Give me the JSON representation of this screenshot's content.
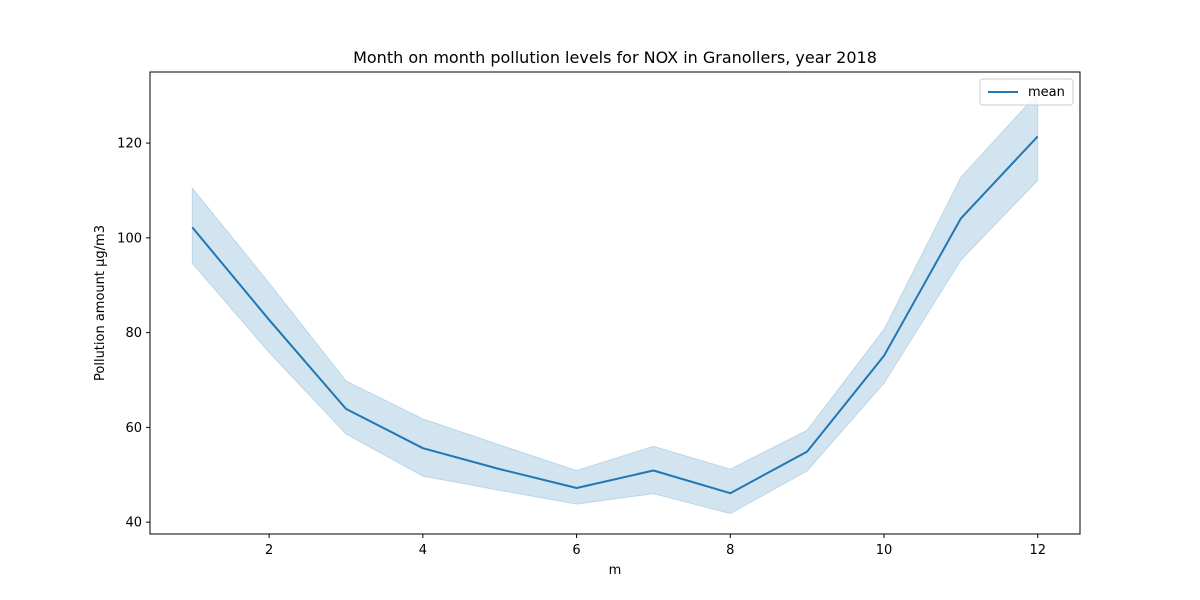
{
  "chart_data": {
    "type": "line",
    "title": "Month on month pollution levels for NOX in Granollers, year 2018",
    "xlabel": "m",
    "ylabel": "Pollution amount µg/m3",
    "x": [
      1,
      2,
      3,
      4,
      5,
      6,
      7,
      8,
      9,
      10,
      11,
      12
    ],
    "xlim": [
      0.45,
      12.55
    ],
    "ylim": [
      37.5,
      135
    ],
    "xticks": [
      2,
      4,
      6,
      8,
      10,
      12
    ],
    "yticks": [
      40,
      60,
      80,
      100,
      120
    ],
    "grid": false,
    "legend_position": "top-right",
    "series": [
      {
        "name": "mean",
        "color": "#1f77b4",
        "values": [
          102.2,
          82.7,
          63.9,
          55.6,
          51.2,
          47.2,
          50.9,
          46.1,
          54.9,
          75.1,
          104.1,
          121.4
        ],
        "band_upper": [
          110.5,
          90.5,
          69.8,
          61.8,
          56.3,
          50.9,
          56.0,
          51.2,
          59.4,
          80.7,
          112.8,
          130.5
        ],
        "band_lower": [
          94.6,
          75.8,
          58.6,
          49.7,
          46.7,
          43.8,
          46.0,
          41.8,
          50.8,
          69.3,
          95.3,
          112.1
        ]
      }
    ]
  }
}
